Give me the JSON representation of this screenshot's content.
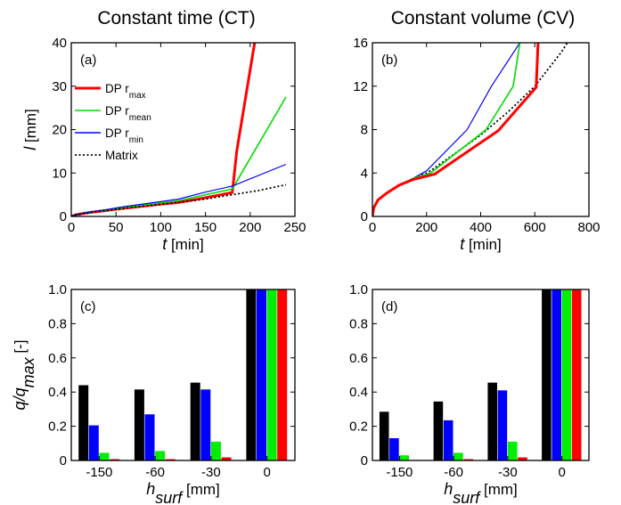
{
  "column_titles": [
    "Constant time (CT)",
    "Constant volume (CV)"
  ],
  "legend": [
    {
      "label": "DP r",
      "sub": "max",
      "color": "#ff0000"
    },
    {
      "label": "DP r",
      "sub": "mean",
      "color": "#00dd00"
    },
    {
      "label": "DP r",
      "sub": "min",
      "color": "#0000ff"
    },
    {
      "label": "Matrix",
      "sub": "",
      "color": "#000000"
    }
  ],
  "bar_colors": [
    "#000000",
    "#0000ff",
    "#00ee00",
    "#ff0000"
  ],
  "chart_data": [
    {
      "type": "line",
      "panel_label": "(a)",
      "title": "Constant time (CT)",
      "xlabel": "t",
      "xlabel_unit": "[min]",
      "ylabel": "l",
      "ylabel_unit": "[mm]",
      "xlim": [
        0,
        250
      ],
      "ylim": [
        0,
        40
      ],
      "xticks": [
        0,
        50,
        100,
        150,
        200,
        250
      ],
      "yticks": [
        0,
        10,
        20,
        30,
        40
      ],
      "series": [
        {
          "name": "DP rmax",
          "style": "solid",
          "width": 3,
          "color": "#ff0000",
          "x": [
            0,
            5,
            20,
            40,
            60,
            100,
            120,
            150,
            180,
            185,
            205
          ],
          "y": [
            0,
            0.4,
            0.9,
            1.4,
            1.9,
            2.8,
            3.2,
            4.3,
            5.5,
            15,
            40
          ]
        },
        {
          "name": "DP rmean",
          "style": "solid",
          "width": 1.6,
          "color": "#00dd00",
          "x": [
            0,
            5,
            20,
            40,
            60,
            100,
            120,
            150,
            180,
            240
          ],
          "y": [
            0,
            0.4,
            1.0,
            1.5,
            2.1,
            3.1,
            3.6,
            5.0,
            6.3,
            27.5
          ]
        },
        {
          "name": "DP rmin",
          "style": "solid",
          "width": 1.2,
          "color": "#0000ff",
          "x": [
            0,
            5,
            20,
            40,
            60,
            100,
            120,
            150,
            180,
            240
          ],
          "y": [
            0,
            0.4,
            1.0,
            1.6,
            2.3,
            3.4,
            4.0,
            5.6,
            7.0,
            12.0
          ]
        },
        {
          "name": "Matrix",
          "style": "dotted",
          "width": 1.8,
          "color": "#000000",
          "x": [
            0,
            5,
            20,
            40,
            60,
            100,
            150,
            180,
            210,
            240
          ],
          "y": [
            0,
            0.4,
            0.9,
            1.4,
            1.9,
            2.8,
            4.0,
            5.0,
            6.0,
            7.3
          ]
        }
      ]
    },
    {
      "type": "line",
      "panel_label": "(b)",
      "title": "Constant volume (CV)",
      "xlabel": "t",
      "xlabel_unit": "[min]",
      "ylabel": "",
      "ylabel_unit": "",
      "xlim": [
        0,
        800
      ],
      "ylim": [
        0,
        16
      ],
      "xticks": [
        0,
        200,
        400,
        600,
        800
      ],
      "yticks": [
        0,
        4,
        8,
        12,
        16
      ],
      "series": [
        {
          "name": "Matrix",
          "style": "dotted",
          "width": 1.8,
          "color": "#000000",
          "x": [
            0,
            5,
            20,
            50,
            100,
            150,
            200,
            220,
            300,
            400,
            500,
            600,
            700,
            720
          ],
          "y": [
            0,
            0.8,
            1.5,
            2.1,
            2.9,
            3.5,
            4.0,
            4.3,
            5.7,
            7.5,
            9.6,
            12.0,
            15.2,
            16
          ]
        },
        {
          "name": "DP rmin",
          "style": "solid",
          "width": 1.2,
          "color": "#0000ff",
          "x": [
            0,
            5,
            20,
            50,
            100,
            150,
            200,
            350,
            440,
            545
          ],
          "y": [
            0,
            0.8,
            1.5,
            2.1,
            2.9,
            3.5,
            4.2,
            8.0,
            12.0,
            16
          ]
        },
        {
          "name": "DP rmean",
          "style": "solid",
          "width": 1.6,
          "color": "#00dd00",
          "x": [
            0,
            5,
            20,
            50,
            100,
            150,
            215,
            420,
            520,
            545
          ],
          "y": [
            0,
            0.8,
            1.5,
            2.1,
            2.9,
            3.5,
            4.0,
            8.0,
            12.0,
            16
          ]
        },
        {
          "name": "DP rmax",
          "style": "solid",
          "width": 3,
          "color": "#ff0000",
          "x": [
            0,
            5,
            20,
            50,
            100,
            150,
            230,
            465,
            605,
            612
          ],
          "y": [
            0,
            0.8,
            1.5,
            2.1,
            2.9,
            3.4,
            3.9,
            7.9,
            11.9,
            16
          ]
        }
      ]
    },
    {
      "type": "bar",
      "panel_label": "(c)",
      "xlabel": "h",
      "xlabel_sub": "surf",
      "xlabel_unit": "[mm]",
      "ylabel": "q/q",
      "ylabel_sub": "max",
      "ylabel_unit": "[-]",
      "ylim": [
        0,
        1.0
      ],
      "yticks": [
        "0",
        "0.2",
        "0.4",
        "0.6",
        "0.8",
        "1.0"
      ],
      "categories": [
        "-150",
        "-60",
        "-30",
        "0"
      ],
      "series": [
        {
          "values": [
            0.44,
            0.415,
            0.455,
            1.0
          ]
        },
        {
          "values": [
            0.205,
            0.27,
            0.415,
            1.0
          ]
        },
        {
          "values": [
            0.045,
            0.055,
            0.11,
            1.0
          ]
        },
        {
          "values": [
            0.008,
            0.008,
            0.018,
            1.0
          ]
        }
      ]
    },
    {
      "type": "bar",
      "panel_label": "(d)",
      "xlabel": "h",
      "xlabel_sub": "surf",
      "xlabel_unit": "[mm]",
      "ylabel": "",
      "ylabel_sub": "",
      "ylabel_unit": "",
      "ylim": [
        0,
        1.0
      ],
      "yticks": [
        "0",
        "0.2",
        "0.4",
        "0.6",
        "0.8",
        "1.0"
      ],
      "categories": [
        "-150",
        "-60",
        "-30",
        "0"
      ],
      "series": [
        {
          "values": [
            0.285,
            0.345,
            0.455,
            1.0
          ]
        },
        {
          "values": [
            0.13,
            0.235,
            0.41,
            1.0
          ]
        },
        {
          "values": [
            0.03,
            0.045,
            0.11,
            1.0
          ]
        },
        {
          "values": [
            0.003,
            0.008,
            0.018,
            1.0
          ]
        }
      ]
    }
  ]
}
